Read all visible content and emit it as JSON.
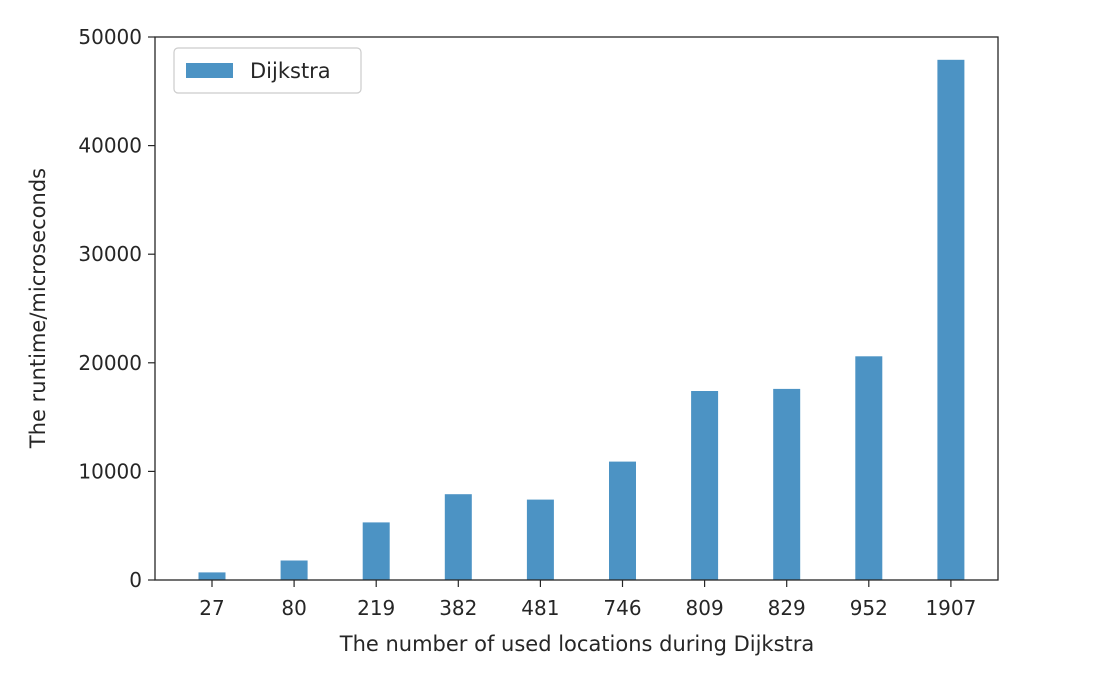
{
  "chart_data": {
    "type": "bar",
    "title": "",
    "xlabel": "The number of used locations during Dijkstra",
    "ylabel": "The runtime/microseconds",
    "categories": [
      "27",
      "80",
      "219",
      "382",
      "481",
      "746",
      "809",
      "829",
      "952",
      "1907"
    ],
    "series": [
      {
        "name": "Dijkstra",
        "color": "#4c93c4",
        "values": [
          700,
          1800,
          5300,
          7900,
          7400,
          10900,
          17400,
          17600,
          20600,
          47900
        ]
      }
    ],
    "ylim": [
      0,
      50000
    ],
    "yticks": [
      "0",
      "10000",
      "20000",
      "30000",
      "40000",
      "50000"
    ],
    "legend_position": "top-left",
    "grid": false
  }
}
